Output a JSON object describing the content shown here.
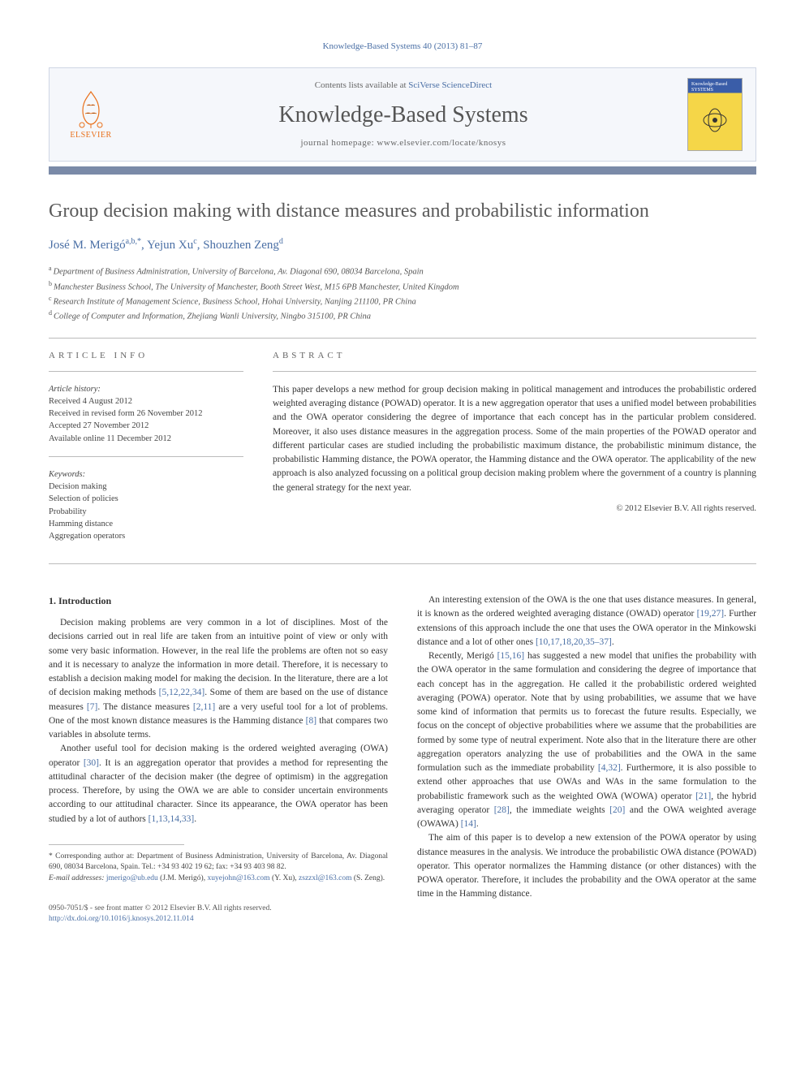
{
  "running_head": "Knowledge-Based Systems 40 (2013) 81–87",
  "masthead": {
    "publisher_name": "ELSEVIER",
    "contents_prefix": "Contents lists available at ",
    "contents_link": "SciVerse ScienceDirect",
    "journal_name": "Knowledge-Based Systems",
    "homepage_prefix": "journal homepage: ",
    "homepage_url": "www.elsevier.com/locate/knosys",
    "thumb_title": "Knowledge-Based SYSTEMS"
  },
  "title": "Group decision making with distance measures and probabilistic information",
  "authors_html": "José M. Merigó <sup>a,b,</sup>*, Yejun Xu <sup>c</sup>, Shouzhen Zeng <sup>d</sup>",
  "authors": [
    {
      "name": "José M. Merigó",
      "marks": "a,b,*"
    },
    {
      "name": "Yejun Xu",
      "marks": "c"
    },
    {
      "name": "Shouzhen Zeng",
      "marks": "d"
    }
  ],
  "affiliations": [
    {
      "mark": "a",
      "text": "Department of Business Administration, University of Barcelona, Av. Diagonal 690, 08034 Barcelona, Spain"
    },
    {
      "mark": "b",
      "text": "Manchester Business School, The University of Manchester, Booth Street West, M15 6PB Manchester, United Kingdom"
    },
    {
      "mark": "c",
      "text": "Research Institute of Management Science, Business School, Hohai University, Nanjing 211100, PR China"
    },
    {
      "mark": "d",
      "text": "College of Computer and Information, Zhejiang Wanli University, Ningbo 315100, PR China"
    }
  ],
  "article_info": {
    "label": "ARTICLE INFO",
    "history_label": "Article history:",
    "history": [
      "Received 4 August 2012",
      "Received in revised form 26 November 2012",
      "Accepted 27 November 2012",
      "Available online 11 December 2012"
    ],
    "keywords_label": "Keywords:",
    "keywords": [
      "Decision making",
      "Selection of policies",
      "Probability",
      "Hamming distance",
      "Aggregation operators"
    ]
  },
  "abstract": {
    "label": "ABSTRACT",
    "text": "This paper develops a new method for group decision making in political management and introduces the probabilistic ordered weighted averaging distance (POWAD) operator. It is a new aggregation operator that uses a unified model between probabilities and the OWA operator considering the degree of importance that each concept has in the particular problem considered. Moreover, it also uses distance measures in the aggregation process. Some of the main properties of the POWAD operator and different particular cases are studied including the probabilistic maximum distance, the probabilistic minimum distance, the probabilistic Hamming distance, the POWA operator, the Hamming distance and the OWA operator. The applicability of the new approach is also analyzed focussing on a political group decision making problem where the government of a country is planning the general strategy for the next year.",
    "copyright": "© 2012 Elsevier B.V. All rights reserved."
  },
  "body": {
    "sec1_heading": "1. Introduction",
    "left": [
      "Decision making problems are very common in a lot of disciplines. Most of the decisions carried out in real life are taken from an intuitive point of view or only with some very basic information. However, in the real life the problems are often not so easy and it is necessary to analyze the information in more detail. Therefore, it is necessary to establish a decision making model for making the decision. In the literature, there are a lot of decision making methods [5,12,22,34]. Some of them are based on the use of distance measures [7]. The distance measures [2,11] are a very useful tool for a lot of problems. One of the most known distance measures is the Hamming distance [8] that compares two variables in absolute terms.",
      "Another useful tool for decision making is the ordered weighted averaging (OWA) operator [30]. It is an aggregation operator that provides a method for representing the attitudinal character of the decision maker (the degree of optimism) in the aggregation process. Therefore, by using the OWA we are able to consider uncertain environments according to our attitudinal character. Since its appearance, the OWA operator has been studied by a lot of authors [1,13,14,33]."
    ],
    "right": [
      "An interesting extension of the OWA is the one that uses distance measures. In general, it is known as the ordered weighted averaging distance (OWAD) operator [19,27]. Further extensions of this approach include the one that uses the OWA operator in the Minkowski distance and a lot of other ones [10,17,18,20,35–37].",
      "Recently, Merigó [15,16] has suggested a new model that unifies the probability with the OWA operator in the same formulation and considering the degree of importance that each concept has in the aggregation. He called it the probabilistic ordered weighted averaging (POWA) operator. Note that by using probabilities, we assume that we have some kind of information that permits us to forecast the future results. Especially, we focus on the concept of objective probabilities where we assume that the probabilities are formed by some type of neutral experiment. Note also that in the literature there are other aggregation operators analyzing the use of probabilities and the OWA in the same formulation such as the immediate probability [4,32]. Furthermore, it is also possible to extend other approaches that use OWAs and WAs in the same formulation to the probabilistic framework such as the weighted OWA (WOWA) operator [21], the hybrid averaging operator [28], the immediate weights [20] and the OWA weighted average (OWAWA) [14].",
      "The aim of this paper is to develop a new extension of the POWA operator by using distance measures in the analysis. We introduce the probabilistic OWA distance (POWAD) operator. This operator normalizes the Hamming distance (or other distances) with the POWA operator. Therefore, it includes the probability and the OWA operator at the same time in the Hamming distance."
    ]
  },
  "footnotes": {
    "corr": "* Corresponding author at: Department of Business Administration, University of Barcelona, Av. Diagonal 690, 08034 Barcelona, Spain. Tel.: +34 93 402 19 62; fax: +34 93 403 98 82.",
    "email_label": "E-mail addresses:",
    "emails": [
      {
        "addr": "jmerigo@ub.edu",
        "who": "(J.M. Merigó)"
      },
      {
        "addr": "xuyejohn@163.com",
        "who": "(Y. Xu)"
      },
      {
        "addr": "zszzxl@163.com",
        "who": "(S. Zeng)."
      }
    ]
  },
  "bottom": {
    "issn_line": "0950-7051/$ - see front matter © 2012 Elsevier B.V. All rights reserved.",
    "doi": "http://dx.doi.org/10.1016/j.knosys.2012.11.014"
  },
  "colors": {
    "link": "#4a6fa5",
    "publisher": "#e9711c",
    "box_bg": "#f5f7fb",
    "divider": "#7a8aa8",
    "thumb_top": "#3a5da8",
    "thumb_body": "#f5d648"
  }
}
